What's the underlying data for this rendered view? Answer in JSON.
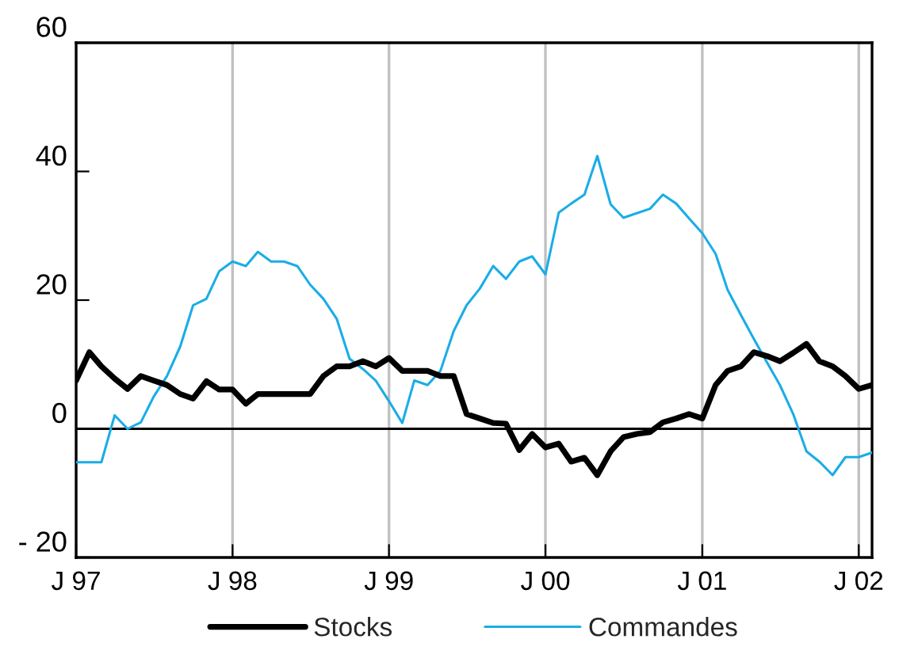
{
  "chart_data": {
    "type": "line",
    "x": [
      "1997-01",
      "1997-02",
      "1997-03",
      "1997-04",
      "1997-05",
      "1997-06",
      "1997-07",
      "1997-08",
      "1997-09",
      "1997-10",
      "1997-11",
      "1997-12",
      "1998-01",
      "1998-02",
      "1998-03",
      "1998-04",
      "1998-05",
      "1998-06",
      "1998-07",
      "1998-08",
      "1998-09",
      "1998-10",
      "1998-11",
      "1998-12",
      "1999-01",
      "1999-02",
      "1999-03",
      "1999-04",
      "1999-05",
      "1999-06",
      "1999-07",
      "1999-08",
      "1999-09",
      "1999-10",
      "1999-11",
      "1999-12",
      "2000-01",
      "2000-02",
      "2000-03",
      "2000-04",
      "2000-05",
      "2000-06",
      "2000-07",
      "2000-08",
      "2000-09",
      "2000-10",
      "2000-11",
      "2000-12",
      "2001-01",
      "2001-02",
      "2001-03",
      "2001-04",
      "2001-05",
      "2001-06",
      "2001-07",
      "2001-08",
      "2001-09",
      "2001-10",
      "2001-11",
      "2001-12",
      "2002-01",
      "2002-02"
    ],
    "series": [
      {
        "name": "Stocks",
        "color": "#000000",
        "values": [
          7.5,
          11.9,
          9.7,
          7.8,
          6.2,
          8.2,
          7.5,
          6.8,
          5.4,
          4.7,
          7.4,
          6.1,
          6.1,
          3.9,
          5.4,
          5.4,
          5.4,
          5.4,
          5.4,
          8.2,
          9.7,
          9.7,
          10.5,
          9.7,
          11,
          9,
          9,
          9,
          8.2,
          8.2,
          2.3,
          1.6,
          0.9,
          0.8,
          -3.3,
          -0.8,
          -2.9,
          -2.3,
          -5.1,
          -4.5,
          -7.2,
          -3.5,
          -1.3,
          -0.8,
          -0.5,
          1,
          1.6,
          2.3,
          1.6,
          6.8,
          9,
          9.7,
          11.9,
          11.3,
          10.5,
          11.8,
          13.2,
          10.5,
          9.7,
          8.2,
          6.2,
          6.8
        ]
      },
      {
        "name": "Commandes",
        "color": "#1aade6",
        "values": [
          -5.2,
          -5.2,
          -5.2,
          2.1,
          0,
          1,
          5,
          8.2,
          12.8,
          19.2,
          20.2,
          24.5,
          26,
          25.3,
          27.5,
          26,
          26,
          25.3,
          22.4,
          20.2,
          17.1,
          10.9,
          9.3,
          7.5,
          4.3,
          0.9,
          7.5,
          6.8,
          9,
          15.2,
          19.2,
          21.8,
          25.3,
          23.3,
          26,
          26.8,
          24,
          33.6,
          35,
          36.4,
          42.4,
          34.9,
          32.8,
          33.5,
          34.2,
          36.4,
          35,
          32.7,
          30.4,
          27.2,
          21.6,
          17.7,
          14,
          10.3,
          6.8,
          2.3,
          -3.5,
          -5.1,
          -7.2,
          -4.4,
          -4.4,
          -3.7
        ]
      }
    ],
    "xlim": [
      "1997-01",
      "2002-02"
    ],
    "xticks": [
      {
        "value": "1997-01",
        "label": "J 97"
      },
      {
        "value": "1998-01",
        "label": "J 98"
      },
      {
        "value": "1999-01",
        "label": "J 99"
      },
      {
        "value": "2000-01",
        "label": "J 00"
      },
      {
        "value": "2001-01",
        "label": "J 01"
      },
      {
        "value": "2002-01",
        "label": "J 02"
      }
    ],
    "ylim": [
      -20,
      60
    ],
    "yticks": [
      {
        "value": -20,
        "label": "- 20"
      },
      0,
      20,
      40,
      60
    ],
    "ref_lines": [
      {
        "axis": "y",
        "value": 0,
        "color": "#000000"
      }
    ],
    "grid": "x",
    "legend": "bottom",
    "line_style": "solid",
    "marker": "none"
  }
}
